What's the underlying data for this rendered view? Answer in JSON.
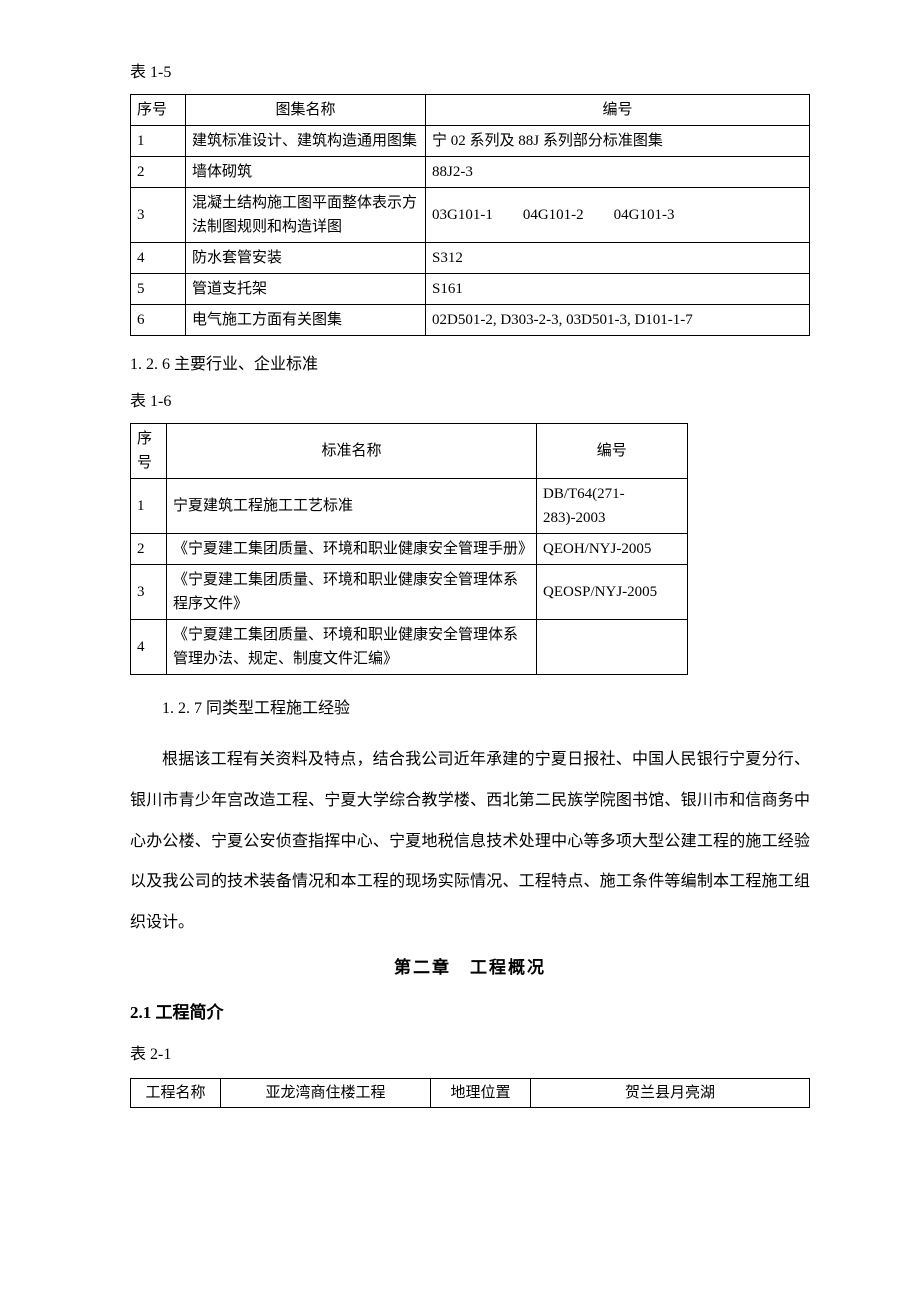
{
  "table1": {
    "caption": "表 1-5",
    "headers": [
      "序号",
      "图集名称",
      "编号"
    ],
    "rows": [
      [
        "1",
        "建筑标准设计、建筑构造通用图集",
        "宁 02 系列及 88J 系列部分标准图集"
      ],
      [
        "2",
        "墙体砌筑",
        "88J2-3"
      ],
      [
        "3",
        "混凝土结构施工图平面整体表示方法制图规则和构造详图",
        "03G101-1　　04G101-2　　04G101-3"
      ],
      [
        "4",
        "防水套管安装",
        "S312"
      ],
      [
        "5",
        "管道支托架",
        "S161"
      ],
      [
        "6",
        "电气施工方面有关图集",
        "02D501-2, D303-2-3, 03D501-3, D101-1-7"
      ]
    ]
  },
  "section_1_2_6": "1. 2. 6 主要行业、企业标准",
  "table2": {
    "caption": "表 1-6",
    "headers": [
      "序号",
      "标准名称",
      "编号"
    ],
    "rows": [
      [
        "1",
        "宁夏建筑工程施工工艺标准",
        "DB/T64(271-283)-2003"
      ],
      [
        "2",
        "《宁夏建工集团质量、环境和职业健康安全管理手册》",
        "QEOH/NYJ-2005"
      ],
      [
        "3",
        "《宁夏建工集团质量、环境和职业健康安全管理体系程序文件》",
        "QEOSP/NYJ-2005"
      ],
      [
        "4",
        "《宁夏建工集团质量、环境和职业健康安全管理体系管理办法、规定、制度文件汇编》",
        ""
      ]
    ]
  },
  "section_1_2_7": "1. 2. 7 同类型工程施工经验",
  "body_paragraph": "根据该工程有关资料及特点，结合我公司近年承建的宁夏日报社、中国人民银行宁夏分行、银川市青少年宫改造工程、宁夏大学综合教学楼、西北第二民族学院图书馆、银川市和信商务中心办公楼、宁夏公安侦查指挥中心、宁夏地税信息技术处理中心等多项大型公建工程的施工经验以及我公司的技术装备情况和本工程的现场实际情况、工程特点、施工条件等编制本工程施工组织设计。",
  "chapter2_title": "第二章　工程概况",
  "section_2_1": "2.1 工程简介",
  "table3": {
    "caption": "表 2-1",
    "row": [
      "工程名称",
      "亚龙湾商住楼工程",
      "地理位置",
      "贺兰县月亮湖"
    ]
  }
}
